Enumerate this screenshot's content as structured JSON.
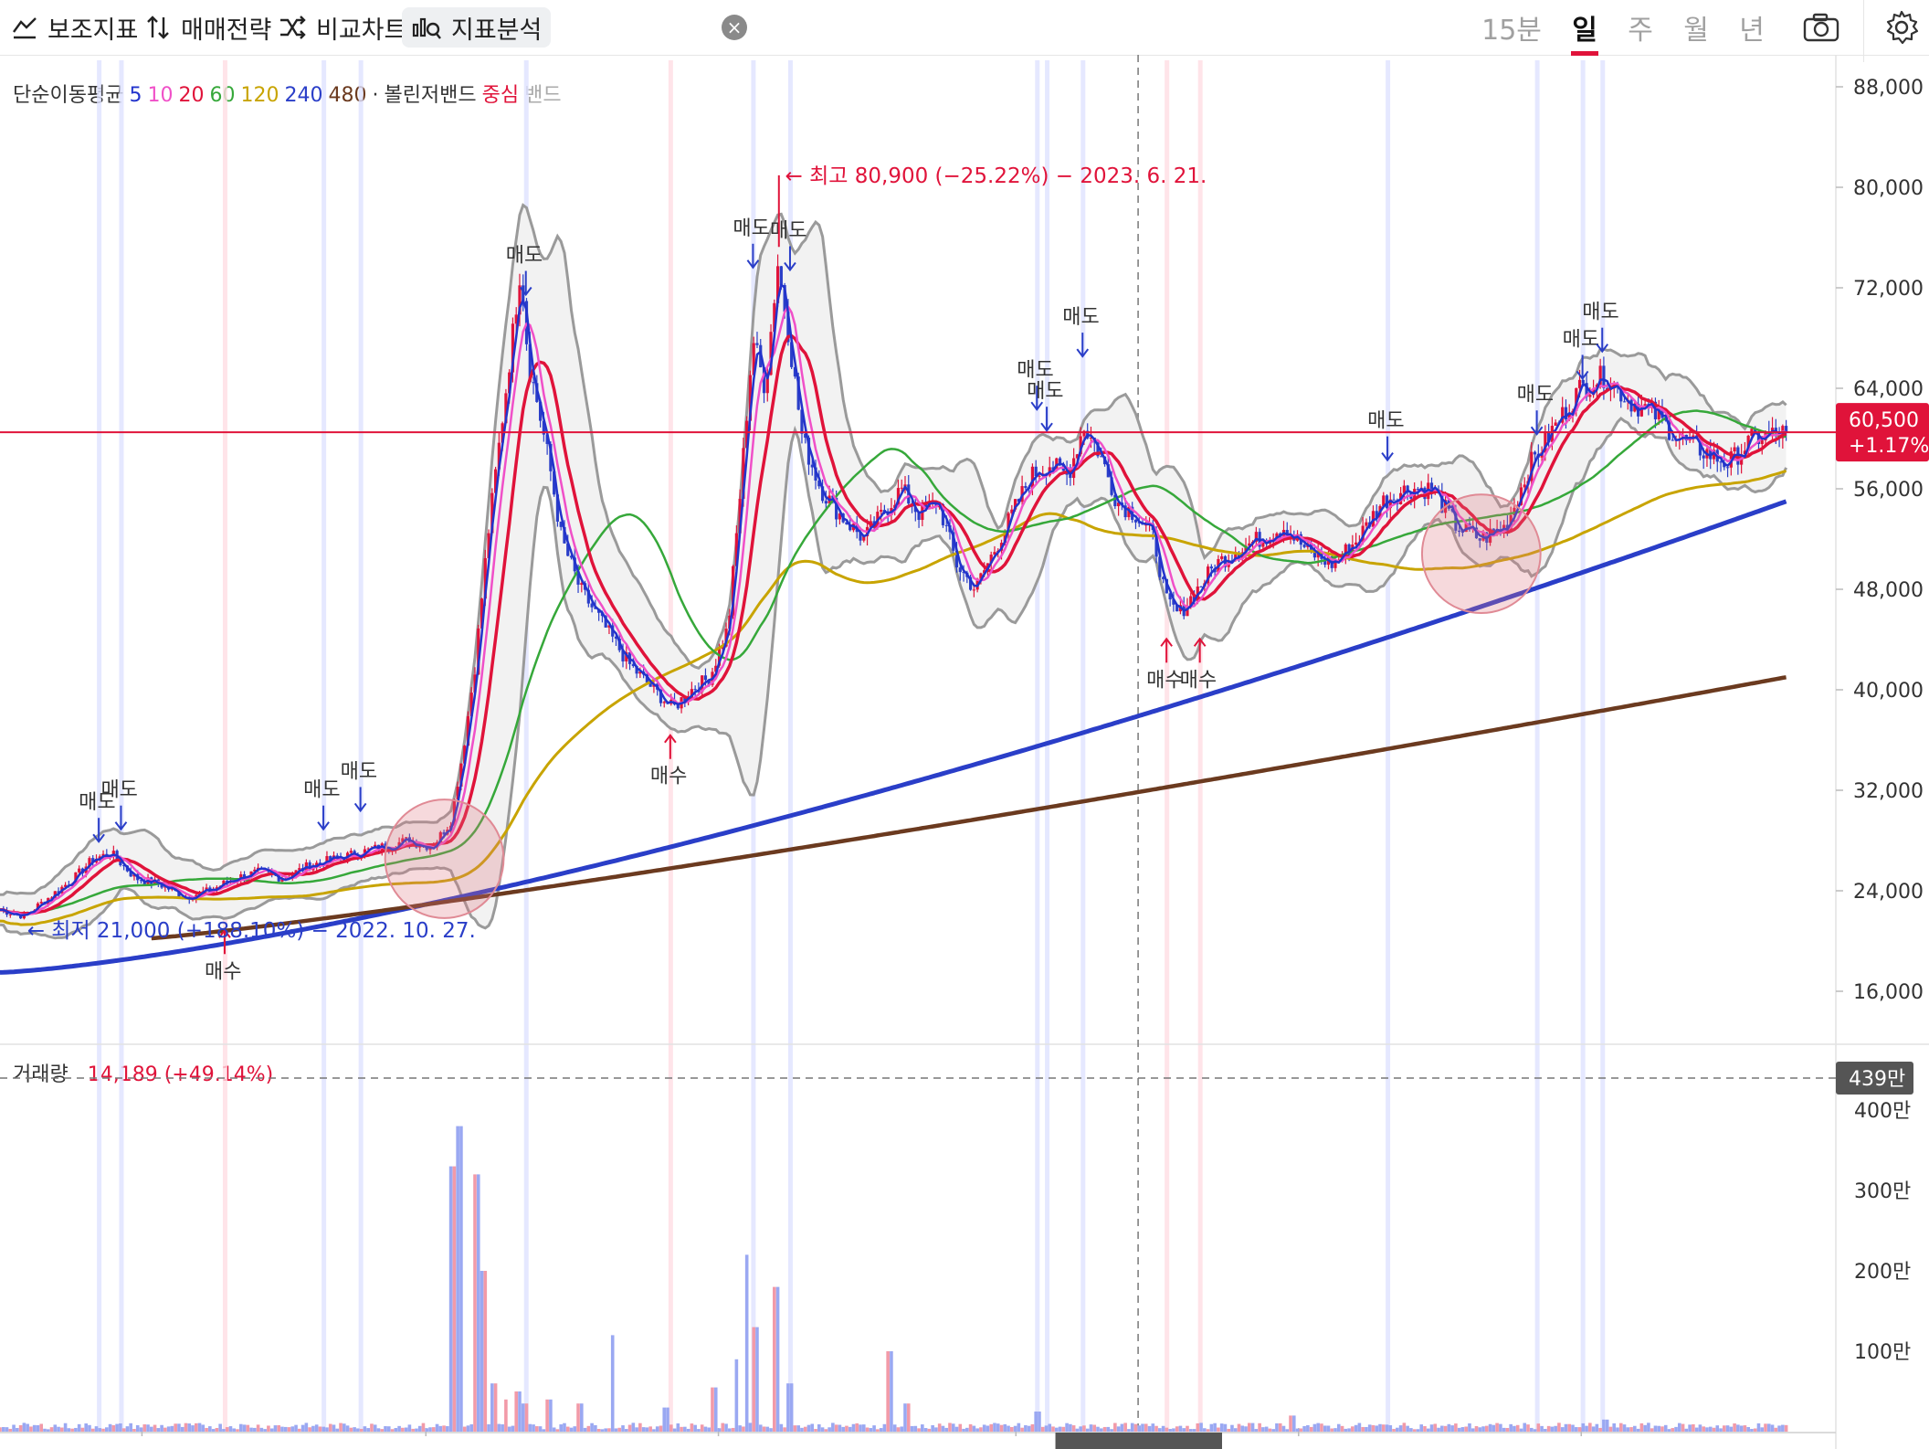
{
  "toolbar": {
    "indicator_label": "보조지표",
    "strategy_label": "매매전략",
    "compare_label": "비교차트",
    "analysis_label": "지표분석",
    "close_label": "×",
    "periods": [
      "15분",
      "일",
      "주",
      "월",
      "년"
    ],
    "selected_period": "일"
  },
  "legend": {
    "ma_label": "단순이동평균",
    "ma_periods": [
      "5",
      "10",
      "20",
      "60",
      "120",
      "240",
      "480"
    ],
    "ma_colors": [
      "#2233cc",
      "#f050c8",
      "#e0133a",
      "#36a83a",
      "#c8a400",
      "#2a3ec8",
      "#6b3a1f"
    ],
    "separator": "·",
    "bb_label": "볼린저밴드",
    "bb_center": "중심",
    "bb_band": "밴드"
  },
  "price_axis": {
    "ticks": [
      "88,000",
      "80,000",
      "72,000",
      "64,000",
      "56,000",
      "48,000",
      "40,000",
      "32,000",
      "24,000",
      "16,000"
    ],
    "current_price": "60,500",
    "current_change": "+1.17%"
  },
  "volume_axis": {
    "ticks": [
      "400만",
      "300만",
      "200만",
      "100만"
    ],
    "marker": "439만"
  },
  "volume_legend": {
    "label": "거래량",
    "value": "14,189",
    "change": "(+49.14%)"
  },
  "annotations": {
    "high": "최고 80,900 (−25.22%) − 2023. 6. 21.",
    "low": "최저 21,000 (+188.10%) − 2022. 10. 27.",
    "sell": "매도",
    "buy": "매수"
  },
  "colors": {
    "up": "#e0133a",
    "down": "#2a3ec8",
    "price_line": "#e0133a",
    "band": "#9a9a9a"
  },
  "chart_data": {
    "type": "candlestick",
    "ylim": [
      16000,
      88000
    ],
    "current_price": 60500,
    "high": 80900,
    "low": 21000,
    "price_anchors": [
      [
        0,
        22500
      ],
      [
        20,
        22000
      ],
      [
        40,
        23500
      ],
      [
        60,
        25000
      ],
      [
        75,
        26500
      ],
      [
        90,
        27000
      ],
      [
        110,
        25000
      ],
      [
        130,
        24500
      ],
      [
        150,
        23500
      ],
      [
        170,
        24000
      ],
      [
        190,
        25000
      ],
      [
        210,
        25500
      ],
      [
        230,
        25000
      ],
      [
        250,
        26000
      ],
      [
        270,
        26500
      ],
      [
        290,
        27000
      ],
      [
        310,
        27500
      ],
      [
        330,
        28000
      ],
      [
        350,
        27500
      ],
      [
        365,
        29500
      ],
      [
        375,
        35000
      ],
      [
        385,
        42000
      ],
      [
        395,
        52000
      ],
      [
        405,
        60000
      ],
      [
        415,
        68000
      ],
      [
        422,
        74000
      ],
      [
        428,
        66000
      ],
      [
        435,
        63000
      ],
      [
        445,
        58000
      ],
      [
        455,
        52000
      ],
      [
        470,
        48000
      ],
      [
        490,
        45000
      ],
      [
        510,
        42000
      ],
      [
        530,
        40000
      ],
      [
        545,
        38500
      ],
      [
        560,
        40000
      ],
      [
        575,
        41000
      ],
      [
        590,
        45000
      ],
      [
        600,
        56000
      ],
      [
        610,
        68000
      ],
      [
        620,
        64000
      ],
      [
        630,
        74000
      ],
      [
        638,
        69000
      ],
      [
        650,
        60000
      ],
      [
        665,
        56000
      ],
      [
        680,
        54000
      ],
      [
        700,
        52000
      ],
      [
        715,
        54000
      ],
      [
        730,
        56000
      ],
      [
        745,
        54000
      ],
      [
        760,
        55000
      ],
      [
        775,
        50000
      ],
      [
        790,
        48000
      ],
      [
        805,
        51000
      ],
      [
        820,
        54000
      ],
      [
        835,
        57000
      ],
      [
        850,
        58000
      ],
      [
        865,
        57000
      ],
      [
        878,
        61000
      ],
      [
        890,
        59000
      ],
      [
        905,
        55000
      ],
      [
        920,
        54000
      ],
      [
        935,
        52000
      ],
      [
        945,
        47000
      ],
      [
        955,
        46000
      ],
      [
        970,
        48000
      ],
      [
        985,
        50000
      ],
      [
        1000,
        51000
      ],
      [
        1020,
        52000
      ],
      [
        1040,
        53000
      ],
      [
        1060,
        51000
      ],
      [
        1080,
        50000
      ],
      [
        1100,
        52000
      ],
      [
        1120,
        55000
      ],
      [
        1140,
        56000
      ],
      [
        1160,
        56000
      ],
      [
        1180,
        53000
      ],
      [
        1200,
        52000
      ],
      [
        1220,
        53000
      ],
      [
        1240,
        58000
      ],
      [
        1260,
        61000
      ],
      [
        1280,
        64000
      ],
      [
        1300,
        65000
      ],
      [
        1320,
        63000
      ],
      [
        1340,
        62000
      ],
      [
        1360,
        60000
      ],
      [
        1380,
        59000
      ],
      [
        1400,
        58000
      ],
      [
        1420,
        60000
      ],
      [
        1447,
        60500
      ]
    ],
    "volume_unit": "만",
    "volume_ylim": [
      0,
      450
    ],
    "volume_max": 439,
    "volume_spikes": [
      [
        367,
        330
      ],
      [
        372,
        380
      ],
      [
        386,
        320
      ],
      [
        392,
        200
      ],
      [
        400,
        60
      ],
      [
        410,
        40
      ],
      [
        420,
        50
      ],
      [
        425,
        35
      ],
      [
        445,
        40
      ],
      [
        470,
        35
      ],
      [
        496,
        120
      ],
      [
        540,
        30
      ],
      [
        578,
        55
      ],
      [
        597,
        90
      ],
      [
        605,
        220
      ],
      [
        612,
        130
      ],
      [
        628,
        180
      ],
      [
        640,
        60
      ],
      [
        720,
        100
      ],
      [
        735,
        35
      ],
      [
        840,
        25
      ],
      [
        1047,
        20
      ],
      [
        1300,
        15
      ]
    ],
    "moving_averages": [
      "MA5",
      "MA10",
      "MA20",
      "MA60",
      "MA120",
      "MA240",
      "MA480"
    ],
    "bollinger": [
      "upper",
      "center",
      "lower"
    ]
  }
}
